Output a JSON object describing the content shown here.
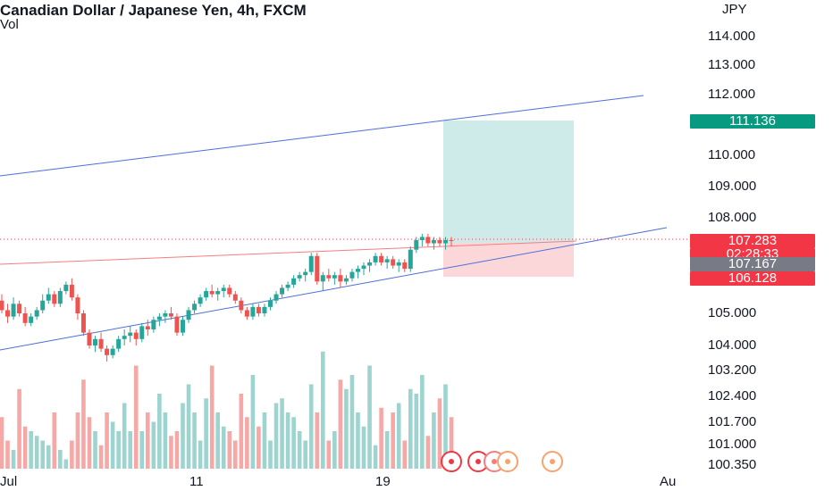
{
  "header": {
    "title": "Canadian Dollar / Japanese Yen, 4h, FXCM",
    "sub": "Vol"
  },
  "chart_data": {
    "type": "candlestick",
    "y_unit": "JPY",
    "y_ticks": [
      "114.000",
      "113.000",
      "112.000",
      "110.000",
      "109.000",
      "108.000",
      "105.000",
      "104.000",
      "103.200",
      "102.400",
      "101.700",
      "101.000",
      "100.350"
    ],
    "x_ticks": [
      "Jul",
      "11",
      "19",
      "Au"
    ],
    "labels": {
      "target": "111.136",
      "last": "107.283",
      "countdown": "02:28:33",
      "entry": "107.167",
      "stop": "106.128"
    },
    "colors": {
      "up": "#26a69a",
      "down": "#ef5350",
      "line": "#4a6fd6",
      "target": "#089981",
      "stop": "#f23645",
      "last": "#f23645",
      "entry": "#787b86"
    },
    "candles": [
      [
        105.4,
        105.6,
        105.0,
        105.1
      ],
      [
        105.1,
        105.3,
        104.7,
        104.9
      ],
      [
        104.9,
        105.5,
        104.8,
        105.3
      ],
      [
        105.3,
        105.4,
        104.9,
        105.0
      ],
      [
        105.0,
        105.2,
        104.6,
        104.7
      ],
      [
        104.7,
        105.0,
        104.6,
        104.9
      ],
      [
        104.9,
        105.2,
        104.8,
        105.1
      ],
      [
        105.1,
        105.6,
        105.0,
        105.4
      ],
      [
        105.4,
        105.8,
        105.3,
        105.6
      ],
      [
        105.6,
        105.7,
        105.2,
        105.3
      ],
      [
        105.3,
        105.8,
        105.2,
        105.7
      ],
      [
        105.7,
        106.0,
        105.6,
        105.9
      ],
      [
        105.9,
        106.1,
        105.4,
        105.5
      ],
      [
        105.5,
        105.6,
        104.8,
        105.0
      ],
      [
        105.0,
        105.1,
        104.3,
        104.4
      ],
      [
        104.4,
        104.5,
        103.9,
        104.0
      ],
      [
        104.0,
        104.3,
        103.8,
        104.2
      ],
      [
        104.2,
        104.4,
        103.8,
        103.9
      ],
      [
        103.9,
        104.0,
        103.5,
        103.7
      ],
      [
        103.7,
        104.0,
        103.6,
        103.9
      ],
      [
        103.9,
        104.3,
        103.8,
        104.2
      ],
      [
        104.2,
        104.5,
        104.0,
        104.3
      ],
      [
        104.3,
        104.6,
        104.1,
        104.4
      ],
      [
        104.4,
        104.5,
        104.0,
        104.2
      ],
      [
        104.2,
        104.7,
        104.1,
        104.6
      ],
      [
        104.6,
        104.8,
        104.3,
        104.5
      ],
      [
        104.5,
        104.9,
        104.4,
        104.8
      ],
      [
        104.8,
        105.0,
        104.6,
        104.9
      ],
      [
        104.9,
        105.1,
        104.7,
        105.0
      ],
      [
        105.0,
        105.2,
        104.8,
        104.9
      ],
      [
        104.9,
        105.0,
        104.3,
        104.4
      ],
      [
        104.4,
        104.9,
        104.3,
        104.8
      ],
      [
        104.8,
        105.2,
        104.7,
        105.1
      ],
      [
        105.1,
        105.4,
        105.0,
        105.3
      ],
      [
        105.3,
        105.6,
        105.2,
        105.5
      ],
      [
        105.5,
        105.8,
        105.4,
        105.7
      ],
      [
        105.7,
        105.9,
        105.5,
        105.6
      ],
      [
        105.6,
        105.8,
        105.4,
        105.7
      ],
      [
        105.7,
        105.9,
        105.5,
        105.8
      ],
      [
        105.8,
        105.9,
        105.5,
        105.6
      ],
      [
        105.6,
        105.7,
        105.3,
        105.4
      ],
      [
        105.4,
        105.5,
        105.0,
        105.1
      ],
      [
        105.1,
        105.2,
        104.8,
        104.9
      ],
      [
        104.9,
        105.3,
        104.8,
        105.2
      ],
      [
        105.2,
        105.3,
        104.9,
        105.0
      ],
      [
        105.0,
        105.3,
        104.9,
        105.2
      ],
      [
        105.2,
        105.5,
        105.1,
        105.4
      ],
      [
        105.4,
        105.7,
        105.3,
        105.6
      ],
      [
        105.6,
        105.9,
        105.5,
        105.8
      ],
      [
        105.8,
        106.0,
        105.7,
        105.9
      ],
      [
        105.9,
        106.2,
        105.8,
        106.1
      ],
      [
        106.1,
        106.3,
        106.0,
        106.2
      ],
      [
        106.2,
        106.4,
        106.0,
        106.3
      ],
      [
        106.3,
        106.9,
        106.2,
        106.8
      ],
      [
        106.8,
        106.9,
        105.9,
        106.0
      ],
      [
        106.0,
        106.3,
        105.7,
        106.2
      ],
      [
        106.2,
        106.4,
        106.0,
        106.1
      ],
      [
        106.1,
        106.3,
        105.9,
        106.2
      ],
      [
        106.2,
        106.4,
        105.8,
        106.0
      ],
      [
        106.0,
        106.2,
        105.9,
        106.1
      ],
      [
        106.1,
        106.4,
        106.0,
        106.3
      ],
      [
        106.3,
        106.5,
        106.1,
        106.4
      ],
      [
        106.4,
        106.6,
        106.2,
        106.5
      ],
      [
        106.5,
        106.7,
        106.3,
        106.6
      ],
      [
        106.6,
        106.9,
        106.5,
        106.8
      ],
      [
        106.8,
        106.9,
        106.5,
        106.6
      ],
      [
        106.6,
        106.8,
        106.4,
        106.7
      ],
      [
        106.7,
        106.8,
        106.4,
        106.5
      ],
      [
        106.5,
        106.7,
        106.3,
        106.6
      ],
      [
        106.6,
        106.7,
        106.3,
        106.4
      ],
      [
        106.4,
        107.1,
        106.3,
        107.0
      ],
      [
        107.0,
        107.4,
        106.9,
        107.3
      ],
      [
        107.3,
        107.5,
        107.1,
        107.4
      ],
      [
        107.4,
        107.5,
        107.1,
        107.2
      ],
      [
        107.2,
        107.4,
        107.0,
        107.3
      ],
      [
        107.3,
        107.4,
        107.1,
        107.2
      ],
      [
        107.2,
        107.4,
        107.0,
        107.3
      ],
      [
        107.3,
        107.4,
        107.1,
        107.283
      ]
    ],
    "volumes": [
      55,
      30,
      20,
      85,
      45,
      40,
      35,
      30,
      25,
      60,
      20,
      10,
      30,
      60,
      95,
      55,
      40,
      25,
      60,
      50,
      40,
      70,
      40,
      110,
      40,
      60,
      50,
      80,
      60,
      35,
      40,
      70,
      90,
      60,
      30,
      75,
      110,
      60,
      45,
      40,
      30,
      80,
      55,
      100,
      45,
      60,
      30,
      70,
      75,
      60,
      55,
      40,
      30,
      90,
      60,
      125,
      30,
      40,
      95,
      85,
      100,
      60,
      45,
      110,
      25,
      65,
      40,
      60,
      70,
      30,
      85,
      80,
      100,
      35,
      60,
      75,
      90,
      55
    ]
  }
}
